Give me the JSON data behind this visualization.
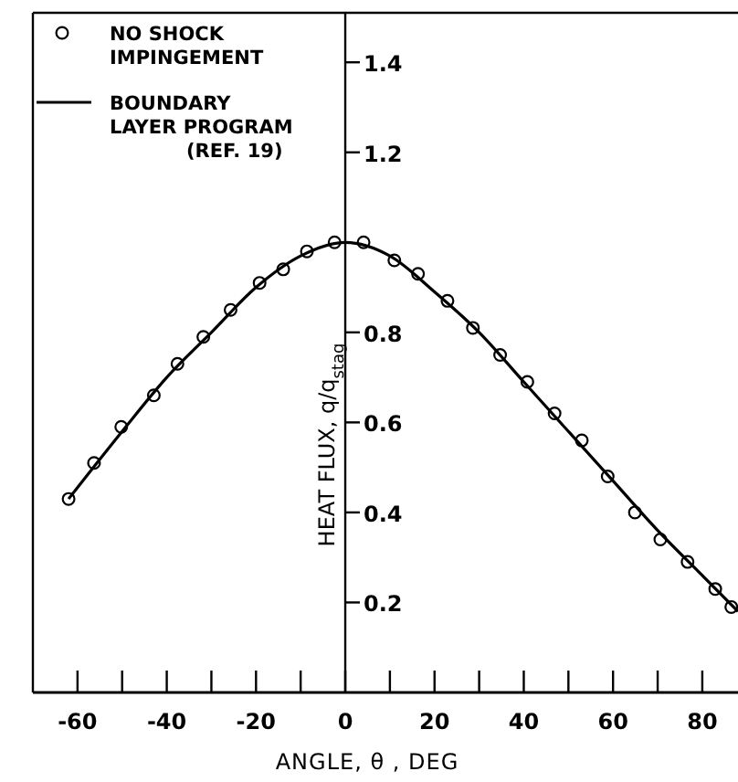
{
  "chart_data": {
    "type": "scatter",
    "xlabel": "ANGLE, θ , DEG",
    "ylabel": "HEAT FLUX, q/q$_{stag}$",
    "xlim": [
      -70,
      88
    ],
    "ylim": [
      0,
      1.51
    ],
    "xticks": [
      -60,
      {
        "value": -50,
        "label": null
      },
      -40,
      {
        "value": -30,
        "label": null
      },
      -20,
      {
        "value": -10,
        "label": null
      },
      0,
      {
        "value": 10,
        "label": null
      },
      20,
      {
        "value": 30,
        "label": null
      },
      40,
      {
        "value": 50,
        "label": null
      },
      60,
      {
        "value": 70,
        "label": null
      },
      80
    ],
    "yticks": [
      0.2,
      0.4,
      0.6,
      0.8,
      1.2,
      1.4
    ],
    "grid": false,
    "legend": "top left",
    "series": [
      {
        "name": "NO SHOCK IMPINGEMENT",
        "marker": "circle",
        "color": "#000000",
        "x": [
          -62,
          -56.3,
          -50.2,
          -42.9,
          -37.6,
          -31.8,
          -25.7,
          -19.2,
          -13.9,
          -8.6,
          -2.4,
          4.1,
          11,
          16.3,
          22.9,
          28.6,
          34.7,
          40.8,
          46.9,
          53,
          58.8,
          64.9,
          70.6,
          76.7,
          82.9,
          86.5
        ],
        "values": [
          0.43,
          0.51,
          0.59,
          0.66,
          0.73,
          0.79,
          0.85,
          0.91,
          0.94,
          0.98,
          1.0,
          1.0,
          0.96,
          0.93,
          0.87,
          0.81,
          0.75,
          0.69,
          0.62,
          0.56,
          0.48,
          0.4,
          0.34,
          0.29,
          0.23,
          0.19
        ]
      },
      {
        "name": "BOUNDARY LAYER PROGRAM (REF. 19)",
        "type": "line",
        "marker": "none",
        "line_style": "solid",
        "color": "#000000",
        "x": [
          -62,
          -50,
          -40,
          -30,
          -20,
          -10,
          0,
          10,
          20,
          30,
          40,
          50,
          60,
          70,
          80,
          88
        ],
        "values": [
          0.43,
          0.58,
          0.7,
          0.8,
          0.9,
          0.97,
          1.0,
          0.97,
          0.89,
          0.8,
          0.69,
          0.58,
          0.47,
          0.36,
          0.26,
          0.18
        ]
      }
    ]
  }
}
